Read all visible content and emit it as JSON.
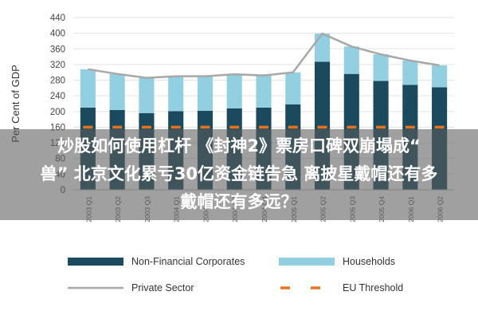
{
  "chart_data": {
    "type": "bar",
    "ylabel": "Per Cent of GDP",
    "ylim": [
      0,
      440
    ],
    "yticks": [
      0,
      40,
      80,
      120,
      160,
      200,
      240,
      280,
      320,
      360,
      400,
      440
    ],
    "categories": [
      "2003 Q1",
      "2003 Q2",
      "2003 Q3",
      "2004 Q1",
      "2004 Q2",
      "2004 Q3",
      "2004 Q4",
      "2005 Q1",
      "2005 Q2",
      "2005 Q3",
      "2005 Q4",
      "2006 Q1",
      "2006 Q2"
    ],
    "category_labels": [
      "2003 Q1",
      "2003 Q2",
      "2003 Q3",
      "2004 Q1",
      "2004 Q2",
      "2004 Q3",
      "2004 Q4",
      "2005 Q1",
      "2005 Q2",
      "2005 Q3",
      "2005 Q4",
      "2006 Q1",
      "2006 Q2"
    ],
    "series": [
      {
        "name": "Non-Financial Corporates",
        "kind": "bar",
        "color": "#1b4a5e",
        "values": [
          210,
          204,
          196,
          201,
          202,
          208,
          210,
          218,
          327,
          296,
          278,
          268,
          262
        ]
      },
      {
        "name": "Households",
        "kind": "bar",
        "color": "#92d0e1",
        "values": [
          98,
          92,
          90,
          89,
          88,
          87,
          82,
          82,
          72,
          70,
          68,
          62,
          56
        ]
      },
      {
        "name": "Private Sector",
        "kind": "line",
        "color": "#a7a7a7",
        "values": [
          308,
          296,
          286,
          290,
          290,
          295,
          292,
          300,
          399,
          366,
          346,
          330,
          318
        ]
      },
      {
        "name": "EU Threshold",
        "kind": "dashed-line",
        "color": "#e8731f",
        "values": [
          160,
          160,
          160,
          160,
          160,
          160,
          160,
          160,
          160,
          160,
          160,
          160,
          160
        ]
      }
    ],
    "grid": true,
    "legend_position": "bottom"
  },
  "overlay": {
    "line1": "炒股如何使用杠杆 《封神2》票房口碑双崩塌成“",
    "line2": "兽” 北京文化累亏30亿资金链告急 离披星戴帽还有多",
    "line3": "戴帽还有多远？"
  },
  "legend": {
    "nfc": "Non-Financial Corporates",
    "households": "Households",
    "private": "Private Sector",
    "eu": "EU Threshold"
  }
}
